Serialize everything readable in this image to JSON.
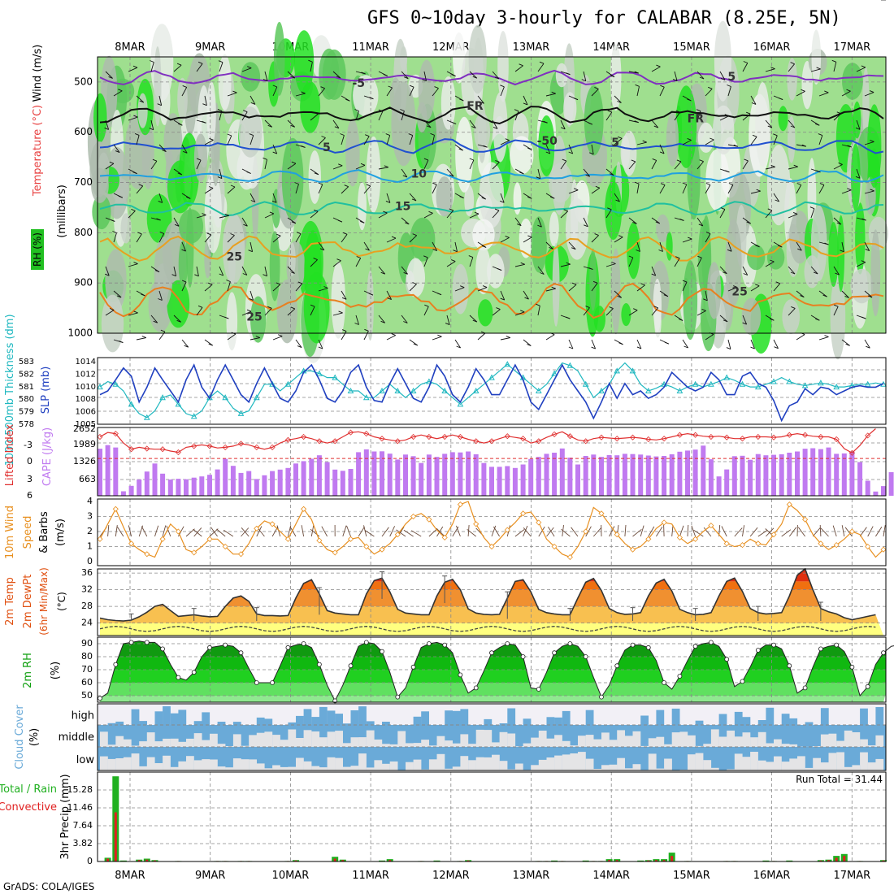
{
  "title": "GFS 0~10day 3-hourly for CALABAR (8.25E, 5N)",
  "credit": "GrADS: COLA/IGES",
  "date_labels": [
    "8MAR",
    "9MAR",
    "10MAR",
    "11MAR",
    "12MAR",
    "13MAR",
    "14MAR",
    "15MAR",
    "16MAR",
    "17MAR"
  ],
  "colors": {
    "rh_light": "#c8d2c8",
    "rh_mid": "#9fdf8f",
    "rh_green": "#5ccd5c",
    "rh_bright": "#22e022",
    "slp": "#2040c0",
    "thickness": "#20b8c0",
    "cape": "#c07af0",
    "lifted": "#e03030",
    "wind_speed": "#e89020",
    "temp_band": "#f07010",
    "rh2m": "#10a010",
    "cloud": "#6aaad8",
    "precip_total": "#20b020",
    "precip_conv": "#e02020"
  },
  "chart_data": [
    {
      "id": "upper-air",
      "type": "heatmap",
      "description_labels": {
        "ylabel": "(millibars)",
        "legend_rh": "RH (%)",
        "legend_temp": "Temperature (°C)",
        "legend_wind": "Wind (m/s)"
      },
      "y_ticks": [
        500,
        600,
        700,
        800,
        900,
        1000
      ],
      "ylim": [
        450,
        1000
      ],
      "isotherm_labels": [
        {
          "text": "-5",
          "level": 510,
          "day": 2.85
        },
        {
          "text": "5",
          "level": 497,
          "day": 7.5
        },
        {
          "text": "FR",
          "level": 555,
          "day": 4.3
        },
        {
          "text": "FR",
          "level": 580,
          "day": 7.05
        },
        {
          "text": "5",
          "level": 638,
          "day": 2.45
        },
        {
          "text": "5",
          "level": 628,
          "day": 6.05
        },
        {
          "text": "-50",
          "level": 625,
          "day": 5.2
        },
        {
          "text": "10",
          "level": 690,
          "day": 3.6
        },
        {
          "text": "15",
          "level": 755,
          "day": 3.4
        },
        {
          "text": "25",
          "level": 855,
          "day": 1.3
        },
        {
          "text": "25",
          "level": 925,
          "day": 7.6
        },
        {
          "text": "25",
          "level": 975,
          "day": 1.55
        }
      ],
      "isotherms": [
        {
          "name": "-5C",
          "color": "#8030c0",
          "base": 492,
          "amp": 8
        },
        {
          "name": "0C",
          "color": "#101010",
          "base": 565,
          "amp": 10
        },
        {
          "name": "5C",
          "color": "#2050d0",
          "base": 628,
          "amp": 8
        },
        {
          "name": "10C",
          "color": "#20a0e0",
          "base": 688,
          "amp": 7
        },
        {
          "name": "15C",
          "color": "#20c0a0",
          "base": 752,
          "amp": 8
        },
        {
          "name": "20C",
          "color": "#e8a020",
          "base": 832,
          "amp": 14
        },
        {
          "name": "25C",
          "color": "#e88020",
          "base": 935,
          "amp": 20
        }
      ]
    },
    {
      "id": "slp-thickness",
      "type": "line",
      "ylabel_left": "1000-500mb Thickness (dm)",
      "ylabel_right": "SLP (mb)",
      "ylim_left": [
        578,
        583
      ],
      "ylim_right": [
        1005,
        1014
      ],
      "left_ticks": [
        "583",
        "582",
        "581",
        "580",
        "579",
        "578"
      ],
      "right_ticks": [
        "1014",
        "1012",
        "1010",
        "1008",
        "1006",
        "1005"
      ],
      "series": [
        {
          "name": "SLP",
          "values": [
            1009,
            1009.5,
            1011,
            1012.6,
            1011.5,
            1008,
            1010,
            1012.6,
            1011,
            1009.5,
            1008,
            1011,
            1013,
            1010,
            1008.5,
            1011,
            1013,
            1011,
            1009,
            1008,
            1010.5,
            1012.6,
            1010.5,
            1008.5,
            1008,
            1009.5,
            1012,
            1013,
            1011,
            1008.5,
            1008,
            1009.5,
            1012,
            1013,
            1010,
            1008.2,
            1008,
            1010.5,
            1012.5,
            1010.5,
            1008.5,
            1008,
            1010,
            1013,
            1011.5,
            1009,
            1008,
            1010,
            1012.5,
            1011,
            1009,
            1009,
            1011,
            1013,
            1011,
            1008,
            1007,
            1009,
            1011,
            1013,
            1011,
            1009.5,
            1008,
            1005.8,
            1008,
            1010.5,
            1008.5,
            1010.5,
            1009,
            1009.5,
            1008.5,
            1009,
            1010,
            1012,
            1011,
            1010,
            1009.5,
            1010,
            1012,
            1011,
            1009,
            1009,
            1011.5,
            1012,
            1010.5,
            1010,
            1008.2,
            1005.5,
            1007.5,
            1008,
            1009.8,
            1009,
            1010,
            1009.8,
            1009,
            1009.5,
            1010,
            1010.2,
            1010,
            1010,
            1010.5
          ]
        },
        {
          "name": "Thickness",
          "values": [
            580.8,
            581.2,
            581,
            580.5,
            579.5,
            578.8,
            578.5,
            579,
            580,
            580.2,
            579.5,
            578.8,
            578.6,
            579,
            580,
            580.5,
            580,
            579.2,
            578.8,
            579,
            580,
            581,
            581,
            580.5,
            581,
            581.5,
            582,
            582,
            581.8,
            581.5,
            581.5,
            581,
            580.5,
            580.5,
            580,
            580,
            580.5,
            581,
            580.5,
            580,
            580.5,
            581,
            581.2,
            581,
            580.5,
            580,
            579.5,
            580,
            580.5,
            581,
            581.5,
            582,
            582.5,
            582,
            581.5,
            581,
            580.5,
            581,
            581.8,
            582.6,
            582.4,
            582,
            581,
            580,
            580.5,
            581,
            582,
            582.6,
            582,
            581,
            580.5,
            580.7,
            581,
            580.8,
            580.5,
            580.8,
            581,
            580.8,
            581,
            581.2,
            581.5,
            581.3,
            581,
            580.8,
            580.8,
            581,
            581.2,
            581.5,
            581.2,
            581,
            580.9,
            581,
            581.1,
            581,
            580.8,
            580.8,
            580.9,
            581,
            581,
            581.1,
            581
          ]
        }
      ]
    },
    {
      "id": "cape-li",
      "type": "bar",
      "ylabel_left": "Lifted Index",
      "ylabel_right": "CAPE (J/kg)",
      "left_ticks": [
        "-3",
        "0",
        "3",
        "6"
      ],
      "right_ticks": [
        "2652",
        "1989",
        "1326",
        "663"
      ],
      "cape_values": [
        2000,
        2150,
        2050,
        190,
        420,
        690,
        1030,
        1370,
        940,
        690,
        720,
        700,
        770,
        820,
        890,
        1120,
        1570,
        1270,
        970,
        1050,
        710,
        870,
        1050,
        1110,
        1180,
        1370,
        1470,
        1570,
        1720,
        1430,
        1110,
        1060,
        1140,
        1850,
        1970,
        1880,
        1890,
        1790,
        1540,
        1750,
        1680,
        1390,
        1750,
        1650,
        1780,
        1850,
        1840,
        1880,
        1760,
        1390,
        1230,
        1230,
        1260,
        1180,
        1330,
        1560,
        1650,
        1780,
        1830,
        2010,
        1620,
        1330,
        1690,
        1750,
        1650,
        1730,
        1720,
        1780,
        1770,
        1750,
        1710,
        1670,
        1690,
        1760,
        1870,
        1920,
        1960,
        2130,
        1550,
        820,
        1120,
        1680,
        1700,
        1530,
        1770,
        1720,
        1740,
        1760,
        1830,
        1880,
        2000,
        2020,
        1980,
        2050,
        1780,
        1800,
        1870,
        1430,
        640,
        180,
        410,
        1000
      ],
      "li_values": [
        -3.5,
        -4.2,
        -4,
        -2.5,
        -1.5,
        -1.8,
        -1.6,
        -1.5,
        -1.5,
        -1.2,
        -1,
        -1.8,
        -2,
        -2.2,
        -2,
        -1.7,
        -1.8,
        -2,
        -2.4,
        -2.2,
        -1.8,
        -1.5,
        -1.8,
        -2.5,
        -3,
        -3.2,
        -3.5,
        -3.2,
        -2.8,
        -2.5,
        -2.8,
        -3.5,
        -4.2,
        -4.3,
        -4,
        -3.5,
        -3.2,
        -3,
        -2.8,
        -3,
        -3.5,
        -3.8,
        -3.5,
        -3.2,
        -3.5,
        -3.8,
        -3.5,
        -3.1,
        -2.8,
        -2.5,
        -2.8,
        -3.2,
        -3.6,
        -3.4,
        -3.2,
        -2.5,
        -2.8,
        -3.4,
        -3.9,
        -4.3,
        -3.6,
        -3,
        -2.8,
        -3.2,
        -3.4,
        -3.3,
        -3.2,
        -3.3,
        -3.4,
        -3.3,
        -3.1,
        -3,
        -3.2,
        -3.5,
        -3.8,
        -4,
        -3.8,
        -3.6,
        -3.5,
        -3.6,
        -3.4,
        -3.2,
        -3.2,
        -3.5,
        -3.5,
        -3.5,
        -3.4,
        -3.5,
        -3.8,
        -4,
        -3.8,
        -3.6,
        -3.5,
        -3.5,
        -3.1,
        -1.6,
        -0.9,
        -2.1,
        -3.7,
        -4.8
      ]
    },
    {
      "id": "wind10m",
      "type": "line",
      "ylabel": "10m Wind Speed & Barbs (m/s)",
      "ylim": [
        0,
        4
      ],
      "y_ticks": [
        "0",
        "1",
        "2",
        "3",
        "4"
      ],
      "values": [
        1.5,
        2.5,
        3.5,
        2.3,
        1.2,
        0.8,
        0.5,
        0.3,
        1.5,
        2.5,
        2,
        0.8,
        0.6,
        1,
        1.5,
        1.5,
        1,
        0.5,
        0.5,
        1.2,
        2.2,
        2.7,
        2.5,
        2,
        1.5,
        2.5,
        3.5,
        2.8,
        1.4,
        0.8,
        0.6,
        1,
        1.5,
        1.6,
        1,
        0.5,
        0.8,
        1.2,
        1.8,
        2.5,
        3,
        3.2,
        2.8,
        2.1,
        1.6,
        2.5,
        3.8,
        4,
        2.5,
        1.6,
        1,
        1.5,
        2.1,
        2.6,
        3.2,
        3.3,
        2.6,
        1.5,
        1,
        0.5,
        0.3,
        1,
        2,
        3.6,
        3.2,
        2.5,
        1.8,
        1.2,
        0.8,
        1,
        1.5,
        2.2,
        2.6,
        2.5,
        1.6,
        1.2,
        1.5,
        2,
        2.4,
        1.8,
        1.2,
        1,
        1.1,
        1.5,
        1.2,
        1.1,
        1.8,
        2.5,
        3.8,
        3.4,
        2.8,
        1.8,
        1.2,
        0.8,
        1.1,
        1.5,
        2,
        1.8,
        1,
        0.3,
        0.8
      ]
    },
    {
      "id": "temp2m",
      "type": "area",
      "ylabel": "2m Temp 2m DewPt (6hr Min/Max) (°C)",
      "ylim": [
        21,
        37
      ],
      "y_ticks": [
        "24",
        "28",
        "32",
        "36"
      ],
      "temp": [
        25.2,
        24.8,
        24.6,
        24.5,
        24.7,
        25.5,
        26.6,
        28,
        28.5,
        27,
        25.6,
        25.8,
        26,
        25.7,
        25.5,
        25.6,
        28,
        30,
        30.5,
        29.2,
        26.2,
        25.8,
        25.8,
        25.7,
        25.8,
        30,
        33.5,
        34.4,
        31,
        27,
        26.4,
        26.2,
        26,
        26,
        31,
        34.2,
        34.8,
        31.5,
        27.3,
        26.4,
        26.2,
        26,
        26,
        30.5,
        33.8,
        34.5,
        32,
        27.4,
        26.4,
        26.1,
        26,
        26.1,
        30,
        34,
        34.4,
        31.5,
        27.3,
        26.5,
        26.2,
        26,
        26,
        30,
        33.8,
        34.7,
        31.8,
        27.5,
        26.5,
        26.1,
        26.2,
        26.5,
        30.5,
        33.6,
        34.5,
        31.7,
        27.3,
        26.5,
        26,
        26.1,
        26.5,
        30.5,
        34,
        34.8,
        31.6,
        27.5,
        26.5,
        26.2,
        26.3,
        26.5,
        30.5,
        35.5,
        37,
        32,
        27.5,
        26.7,
        26.2,
        25.3,
        24.8,
        25.2,
        25.6,
        26
      ]
    },
    {
      "id": "rh2m",
      "type": "area",
      "ylabel": "2m RH (%)",
      "ylim": [
        45,
        95
      ],
      "y_ticks": [
        "50",
        "60",
        "70",
        "80",
        "90"
      ],
      "values": [
        48,
        52,
        74,
        90,
        91,
        92,
        91,
        91,
        86,
        74,
        64,
        62,
        68,
        80,
        87,
        88,
        89,
        88,
        83,
        71,
        60,
        60,
        60,
        73,
        87,
        89,
        90,
        87,
        74,
        58,
        46,
        58,
        73,
        88,
        91,
        90,
        84,
        68,
        49,
        56,
        72,
        87,
        90,
        91,
        89,
        83,
        66,
        52,
        56,
        69,
        83,
        87,
        90,
        89,
        80,
        56,
        55,
        68,
        83,
        88,
        90,
        88,
        80,
        64,
        49,
        58,
        73,
        85,
        89,
        89,
        87,
        77,
        60,
        55,
        65,
        77,
        88,
        90,
        91,
        88,
        78,
        57,
        61,
        72,
        85,
        89,
        89,
        86,
        73,
        52,
        56,
        72,
        86,
        88,
        89,
        84,
        72,
        50,
        57,
        74,
        83,
        88,
        89
      ]
    },
    {
      "id": "clouds",
      "type": "heatmap",
      "ylabel": "Cloud Cover (%)",
      "levels": [
        "high",
        "middle",
        "low"
      ]
    },
    {
      "id": "precip",
      "type": "bar",
      "ylabel": "3hr Precip (mm)",
      "ylabel_left_1": "Total / Rain",
      "ylabel_left_2": "Convective",
      "run_total_label": "Run Total = 31.44",
      "ylim": [
        0,
        19.1
      ],
      "y_ticks": [
        "0",
        "3.82",
        "7.64",
        "11.46",
        "15.28"
      ],
      "total": [
        0,
        0.8,
        18.2,
        0.2,
        0,
        0.4,
        0.6,
        0.3,
        0,
        0,
        0.1,
        0,
        0,
        0,
        0,
        0.1,
        0.1,
        0,
        0.1,
        0.1,
        0,
        0,
        0,
        0,
        0.1,
        0.3,
        0,
        0,
        0,
        0,
        1,
        0.4,
        0,
        0,
        0,
        0,
        0.2,
        0.5,
        0,
        0,
        0,
        0.1,
        0,
        0.2,
        0,
        0,
        0.1,
        0.3,
        0,
        0,
        0,
        0,
        0,
        0,
        0,
        0,
        0.1,
        0.1,
        0.2,
        0.1,
        0,
        0,
        0.2,
        0.1,
        0.1,
        0.5,
        0.5,
        0,
        0,
        0.2,
        0.3,
        0.5,
        0.5,
        1.9,
        0,
        0.1,
        0,
        0,
        0,
        0,
        0.1,
        0.1,
        0,
        0,
        0,
        0.2,
        0.1,
        0,
        0.2,
        0,
        0,
        0,
        0.3,
        0.4,
        1.2,
        1.6,
        0,
        0.1,
        0,
        0,
        0.3
      ],
      "convective": [
        0,
        0.6,
        10.5,
        0.1,
        0,
        0.3,
        0.4,
        0.2,
        0,
        0,
        0.1,
        0,
        0,
        0,
        0,
        0.1,
        0.1,
        0,
        0.1,
        0.1,
        0,
        0,
        0,
        0,
        0.1,
        0.2,
        0,
        0,
        0,
        0,
        0.6,
        0.3,
        0,
        0,
        0,
        0,
        0.1,
        0.3,
        0,
        0,
        0,
        0.1,
        0,
        0.1,
        0,
        0,
        0.1,
        0.2,
        0,
        0,
        0,
        0,
        0,
        0,
        0,
        0,
        0.1,
        0.1,
        0.1,
        0.1,
        0,
        0,
        0.1,
        0.1,
        0.1,
        0.3,
        0.3,
        0,
        0,
        0.1,
        0.2,
        0.3,
        0.3,
        1.2,
        0,
        0.1,
        0,
        0,
        0,
        0,
        0.1,
        0.1,
        0,
        0,
        0,
        0.1,
        0.1,
        0,
        0.1,
        0,
        0,
        0,
        0.2,
        0.3,
        0.8,
        1.2,
        0,
        0.1,
        0,
        0,
        0.2
      ]
    }
  ]
}
